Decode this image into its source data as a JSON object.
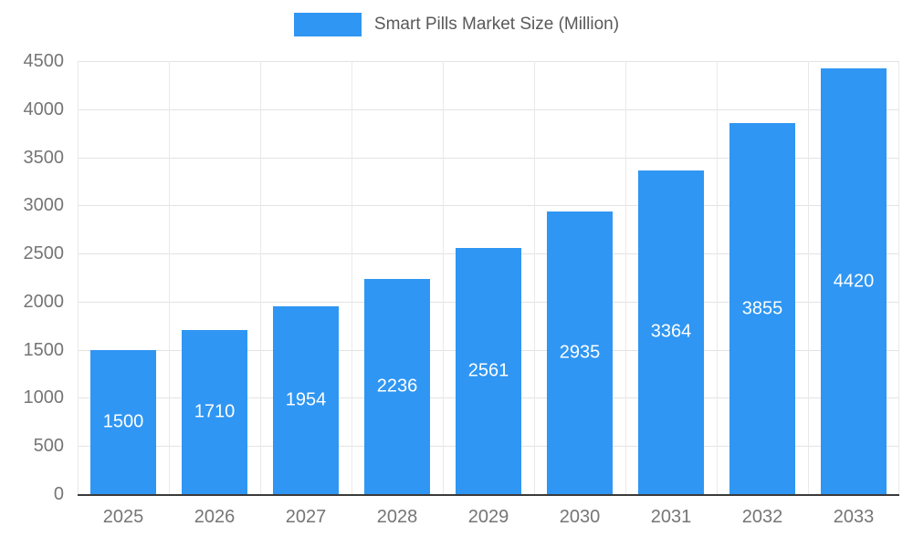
{
  "chart_data": {
    "type": "bar",
    "title": "Smart Pills Market Size (Million)",
    "categories": [
      "2025",
      "2026",
      "2027",
      "2028",
      "2029",
      "2030",
      "2031",
      "2032",
      "2033"
    ],
    "values": [
      1500,
      1710,
      1954,
      2236,
      2561,
      2935,
      3364,
      3855,
      4420
    ],
    "xlabel": "",
    "ylabel": "",
    "ylim": [
      0,
      4500
    ],
    "ytick_step": 500,
    "yticks": [
      0,
      500,
      1000,
      1500,
      2000,
      2500,
      3000,
      3500,
      4000,
      4500
    ],
    "grid": "on",
    "legend_position": "top-center",
    "bar_color": "#2F96F3",
    "value_label_color": "#ffffff",
    "axis_label_color": "#757575",
    "legend_text_color": "#595959"
  }
}
